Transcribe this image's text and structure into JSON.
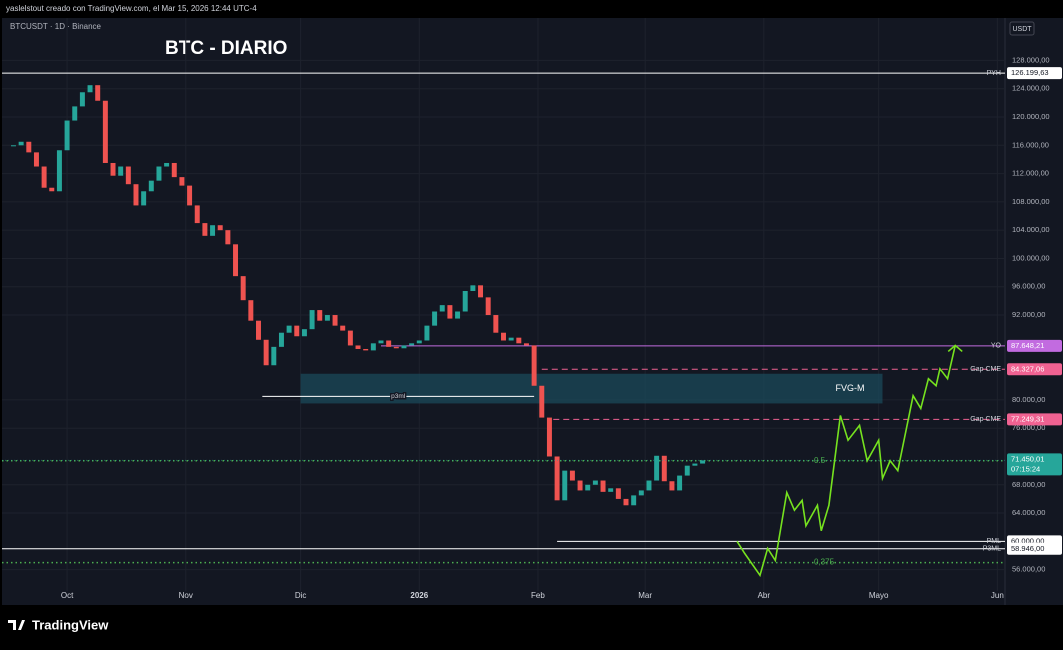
{
  "header": {
    "credit": "yaslelstout creado con TradingView.com, el Mar 15, 2026 12:44 UTC-4",
    "logo": "TradingView"
  },
  "chart_data": {
    "type": "candlestick",
    "symbol": "BTCUSDT · 1D · Binance",
    "title": "BTC - DIARIO",
    "currency": "USDT",
    "up_color": "#26a69a",
    "down_color": "#ef5350",
    "xlim": [
      -17,
      245
    ],
    "xticks": [
      {
        "value": 0,
        "label": "Oct"
      },
      {
        "value": 31,
        "label": "Nov"
      },
      {
        "value": 61,
        "label": "Dic"
      },
      {
        "value": 92,
        "label": "2026"
      },
      {
        "value": 123,
        "label": "Feb"
      },
      {
        "value": 151,
        "label": "Mar"
      },
      {
        "value": 182,
        "label": "Abr"
      },
      {
        "value": 212,
        "label": "Mayo"
      },
      {
        "value": 243,
        "label": "Jun"
      }
    ],
    "ylim": [
      51000,
      134000
    ],
    "yticks": [
      {
        "value": 128000,
        "label": "128.000,00"
      },
      {
        "value": 124000,
        "label": "124.000,00"
      },
      {
        "value": 120000,
        "label": "120.000,00"
      },
      {
        "value": 116000,
        "label": "116.000,00"
      },
      {
        "value": 112000,
        "label": "112.000,00"
      },
      {
        "value": 108000,
        "label": "108.000,00"
      },
      {
        "value": 104000,
        "label": "104.000,00"
      },
      {
        "value": 100000,
        "label": "100.000,00"
      },
      {
        "value": 96000,
        "label": "96.000,00"
      },
      {
        "value": 92000,
        "label": "92.000,00"
      },
      {
        "value": 80000,
        "label": "80.000,00"
      },
      {
        "value": 76000,
        "label": "76.000,00"
      },
      {
        "value": 68000,
        "label": "68.000,00"
      },
      {
        "value": 64000,
        "label": "64.000,00"
      },
      {
        "value": 56000,
        "label": "56.000,00"
      }
    ],
    "x": [
      -14,
      -12,
      -10,
      -8,
      -6,
      -4,
      -2,
      0,
      2,
      4,
      6,
      8,
      10,
      12,
      14,
      16,
      18,
      20,
      22,
      24,
      26,
      28,
      30,
      32,
      34,
      36,
      38,
      40,
      42,
      44,
      46,
      48,
      50,
      52,
      54,
      56,
      58,
      60,
      62,
      64,
      66,
      68,
      70,
      72,
      74,
      76,
      78,
      80,
      82,
      84,
      86,
      88,
      90,
      92,
      94,
      96,
      98,
      100,
      102,
      104,
      106,
      108,
      110,
      112,
      114,
      116,
      118,
      120,
      122,
      124,
      126,
      128,
      130,
      132,
      134,
      136,
      138,
      140,
      142,
      144,
      146,
      148,
      150,
      152,
      154,
      156,
      158,
      160,
      162,
      164,
      166
    ],
    "values": [
      116000,
      116500,
      115000,
      113000,
      110000,
      109500,
      115300,
      119500,
      121500,
      123500,
      124500,
      122300,
      113500,
      111700,
      113000,
      110500,
      107500,
      109500,
      111000,
      113000,
      113500,
      111500,
      110300,
      107500,
      105000,
      103200,
      104700,
      104000,
      102000,
      97500,
      94100,
      91200,
      88500,
      84900,
      87500,
      89500,
      90500,
      89000,
      90000,
      92700,
      91200,
      92000,
      90500,
      89800,
      87700,
      87200,
      87000,
      88000,
      88400,
      87500,
      87300,
      87700,
      88000,
      88400,
      90500,
      92500,
      93400,
      91500,
      92500,
      95400,
      96200,
      94500,
      92000,
      89500,
      88400,
      88800,
      88000,
      87700,
      82000,
      77500,
      72000,
      65800,
      70000,
      68600,
      67200,
      68000,
      68600,
      67000,
      67500,
      66000,
      65100,
      66500,
      67200,
      68600,
      72100,
      68500,
      67200,
      69300,
      70700,
      71000,
      71450
    ],
    "projection": {
      "color": "#76e21f",
      "x": [
        175,
        177,
        181,
        183,
        185,
        188,
        190,
        192,
        193,
        196,
        197,
        199,
        202,
        204,
        207,
        209,
        212,
        213,
        215,
        217,
        221,
        223,
        225,
        227,
        228,
        230,
        232
      ],
      "values": [
        60000,
        58300,
        55200,
        59000,
        57300,
        66900,
        64400,
        65800,
        62200,
        65100,
        61500,
        65100,
        77800,
        74300,
        76400,
        71400,
        74300,
        68900,
        71400,
        70000,
        80600,
        78800,
        83000,
        82000,
        84400,
        83000,
        87700
      ]
    },
    "zones": [
      {
        "name": "FVG-M",
        "top": 83700,
        "bottom": 79500,
        "from": 61,
        "to": 213,
        "color": "#1b4a5a"
      }
    ],
    "levels": [
      {
        "name": "PYH",
        "value": 126199.63,
        "value_label": "126.199,63",
        "from": -17,
        "color": "#ffffff",
        "style": "solid"
      },
      {
        "name": "YO",
        "value": 87648.21,
        "value_label": "87.648,21",
        "from": 82,
        "color": "#c26be0",
        "style": "solid"
      },
      {
        "name": "Gap CME",
        "value": 84327.06,
        "value_label": "84.327,06",
        "from": 124,
        "color": "#f06292",
        "style": "dashed"
      },
      {
        "name": "Gap CME",
        "value": 77249.31,
        "value_label": "77.249,31",
        "from": 127,
        "color": "#f06292",
        "style": "dashed"
      },
      {
        "name": "0.5",
        "value": 71400,
        "from": -17,
        "color": "#4caf50",
        "style": "dotted"
      },
      {
        "name": "PML",
        "value": 60000,
        "value_label": "60.000,00",
        "from": 128,
        "color": "#ffffff",
        "style": "solid"
      },
      {
        "name": "P3ML",
        "value": 58946,
        "value_label": "58.946,00",
        "from": -17,
        "color": "#ffffff",
        "style": "solid"
      },
      {
        "name": "0,375",
        "value": 57000,
        "from": -17,
        "color": "#4caf50",
        "style": "dotted"
      },
      {
        "name": "p3ml",
        "value": 80500,
        "from": 51,
        "to": 122,
        "color": "#ffffff",
        "style": "solid"
      }
    ],
    "last_price": {
      "value": 71450.01,
      "label": "71.450,01",
      "countdown": "07:15:24",
      "color": "#26a69a"
    }
  }
}
